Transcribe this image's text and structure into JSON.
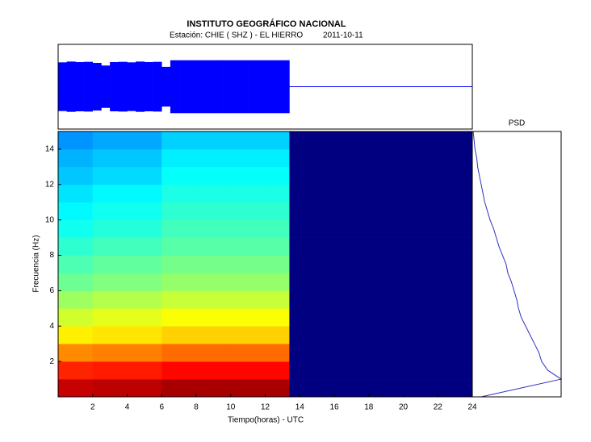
{
  "chart_data": [
    {
      "type": "envelope",
      "title": "INSTITUTO GEOGRÁFICO NACIONAL",
      "subtitle": "Estación:  CHIE ( SHZ ) - EL HIERRO",
      "date": "2011-10-11",
      "color": "#0000ff",
      "x": [
        0,
        0.5,
        1,
        1.5,
        2,
        2.5,
        3,
        3.5,
        4,
        4.5,
        5,
        5.5,
        6,
        6.5,
        7,
        7.5,
        8,
        8.5,
        9,
        9.5,
        10,
        10.5,
        11,
        11.5,
        12,
        12.5,
        13,
        13.4
      ],
      "values": [
        0.92,
        0.95,
        0.93,
        0.94,
        0.9,
        0.8,
        0.93,
        0.94,
        0.92,
        0.95,
        0.93,
        0.94,
        0.75,
        1,
        1,
        1,
        1,
        1,
        1,
        1,
        1,
        1,
        1,
        1,
        1,
        1,
        1,
        0
      ],
      "xlim": [
        0,
        24
      ],
      "ylim": [
        -1.6,
        1.6
      ]
    },
    {
      "type": "heatmap",
      "xlabel": "Tiempo(horas) - UTC",
      "ylabel": "Frecuencia  (Hz)",
      "colormap": "jet",
      "vlim": [
        0,
        1
      ],
      "null_color": "#000080",
      "x_edges": [
        0,
        2,
        4,
        6,
        8,
        10,
        12,
        13.4,
        24
      ],
      "y_edges": [
        0,
        1,
        2,
        3,
        4,
        5,
        6,
        7,
        8,
        9,
        10,
        11,
        12,
        13,
        14,
        15
      ],
      "values": [
        [
          0.93,
          0.94,
          0.94,
          0.96,
          0.96,
          0.96,
          0.96,
          null
        ],
        [
          0.84,
          0.85,
          0.85,
          0.87,
          0.87,
          0.87,
          0.87,
          null
        ],
        [
          0.74,
          0.75,
          0.75,
          0.77,
          0.77,
          0.77,
          0.77,
          null
        ],
        [
          0.64,
          0.65,
          0.65,
          0.67,
          0.67,
          0.67,
          0.67,
          null
        ],
        [
          0.58,
          0.6,
          0.6,
          0.62,
          0.62,
          0.62,
          0.62,
          null
        ],
        [
          0.53,
          0.55,
          0.55,
          0.57,
          0.57,
          0.57,
          0.57,
          null
        ],
        [
          0.48,
          0.5,
          0.5,
          0.52,
          0.52,
          0.52,
          0.52,
          null
        ],
        [
          0.45,
          0.47,
          0.47,
          0.49,
          0.49,
          0.49,
          0.49,
          null
        ],
        [
          0.42,
          0.44,
          0.44,
          0.46,
          0.46,
          0.46,
          0.46,
          null
        ],
        [
          0.39,
          0.41,
          0.41,
          0.44,
          0.44,
          0.44,
          0.44,
          null
        ],
        [
          0.37,
          0.39,
          0.39,
          0.42,
          0.42,
          0.42,
          0.42,
          null
        ],
        [
          0.35,
          0.37,
          0.37,
          0.4,
          0.4,
          0.4,
          0.4,
          null
        ],
        [
          0.32,
          0.34,
          0.34,
          0.38,
          0.38,
          0.38,
          0.38,
          null
        ],
        [
          0.3,
          0.32,
          0.32,
          0.36,
          0.36,
          0.36,
          0.36,
          null
        ],
        [
          0.27,
          0.29,
          0.29,
          0.33,
          0.33,
          0.33,
          0.33,
          null
        ]
      ],
      "xlim": [
        0,
        24
      ],
      "xticks": [
        2,
        4,
        6,
        8,
        10,
        12,
        14,
        16,
        18,
        20,
        22,
        24
      ],
      "ylim": [
        0,
        15
      ],
      "yticks": [
        2,
        4,
        6,
        8,
        10,
        12,
        14
      ]
    },
    {
      "type": "line",
      "title": "PSD",
      "color": "#3030c0",
      "y": [
        0,
        0.5,
        1,
        1.5,
        2,
        2.5,
        3,
        3.5,
        4,
        4.5,
        5,
        5.5,
        6,
        6.5,
        7,
        7.5,
        8,
        8.5,
        9,
        9.5,
        10,
        10.5,
        11,
        11.5,
        12,
        12.5,
        13,
        13.5,
        14,
        14.5,
        15
      ],
      "values": [
        0.1,
        0.55,
        1,
        0.85,
        0.78,
        0.75,
        0.7,
        0.65,
        0.6,
        0.55,
        0.52,
        0.5,
        0.47,
        0.44,
        0.4,
        0.38,
        0.34,
        0.3,
        0.27,
        0.24,
        0.2,
        0.17,
        0.14,
        0.12,
        0.1,
        0.08,
        0.06,
        0.05,
        0.03,
        0.02,
        0.01
      ],
      "xlim": [
        0,
        1
      ],
      "ylim": [
        0,
        15
      ]
    }
  ]
}
